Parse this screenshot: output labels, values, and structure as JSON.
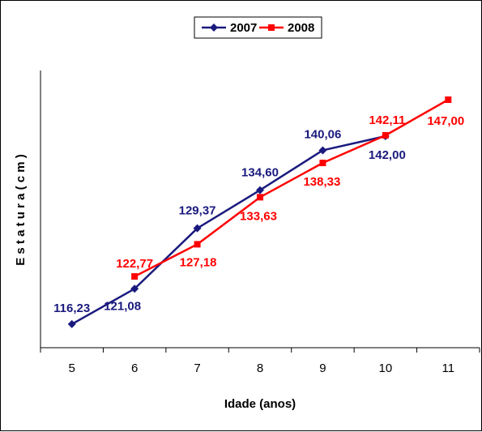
{
  "chart_data": {
    "type": "line",
    "title": "",
    "xlabel": "Idade (anos)",
    "ylabel": "E s t a t u r a  ( c m )",
    "categories": [
      "5",
      "6",
      "7",
      "8",
      "9",
      "10",
      "11"
    ],
    "ylim": [
      113,
      151
    ],
    "grid": false,
    "legend_position": "top-center",
    "series": [
      {
        "name": "2007",
        "color": "#1a1a7e",
        "marker": "diamond",
        "x": [
          5,
          6,
          7,
          8,
          9,
          10
        ],
        "values": [
          116.23,
          121.08,
          129.37,
          134.6,
          140.06,
          142.0
        ],
        "labels": [
          "116,23",
          "121,08",
          "129,37",
          "134,60",
          "140,06",
          "142,00"
        ]
      },
      {
        "name": "2008",
        "color": "#ff0000",
        "marker": "square",
        "x": [
          6,
          7,
          8,
          9,
          10,
          11
        ],
        "values": [
          122.77,
          127.18,
          133.63,
          138.33,
          142.11,
          147.0
        ],
        "labels": [
          "122,77",
          "127,18",
          "133,63",
          "138,33",
          "142,11",
          "147,00"
        ]
      }
    ]
  }
}
